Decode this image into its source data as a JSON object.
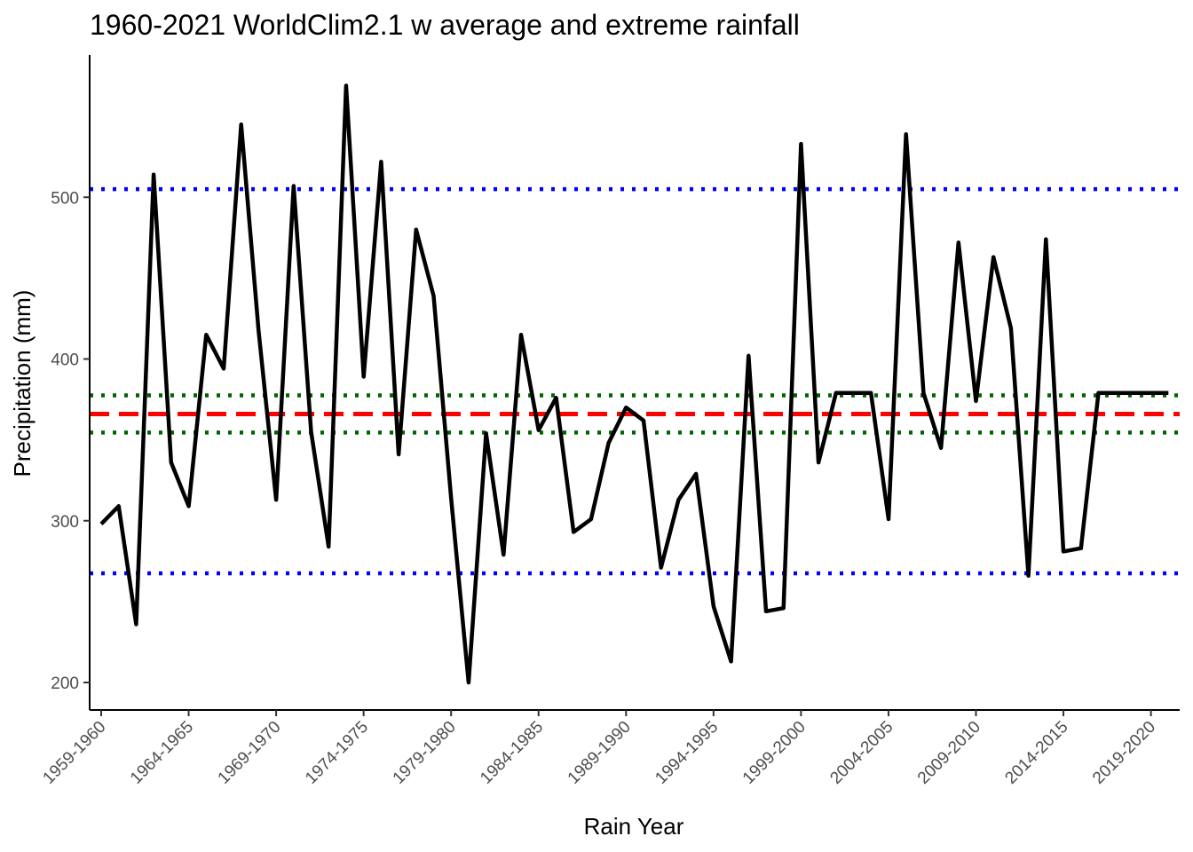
{
  "chart_data": {
    "type": "line",
    "title": "1960-2021 WorldClim2.1 w average and extreme rainfall",
    "xlabel": "Rain Year",
    "ylabel": "Precipitation (mm)",
    "grid": false,
    "legend": "none",
    "ylim": [
      180,
      590
    ],
    "y_ticks": [
      200,
      300,
      400,
      500
    ],
    "x_tick_labels": [
      "1959-1960",
      "1964-1965",
      "1969-1970",
      "1974-1975",
      "1979-1980",
      "1984-1985",
      "1989-1990",
      "1994-1995",
      "1999-2000",
      "2004-2005",
      "2009-2010",
      "2014-2015",
      "2019-2020"
    ],
    "categories": [
      "1959-1960",
      "1960-1961",
      "1961-1962",
      "1962-1963",
      "1963-1964",
      "1964-1965",
      "1965-1966",
      "1966-1967",
      "1967-1968",
      "1968-1969",
      "1969-1970",
      "1970-1971",
      "1971-1972",
      "1972-1973",
      "1973-1974",
      "1974-1975",
      "1975-1976",
      "1976-1977",
      "1977-1978",
      "1978-1979",
      "1979-1980",
      "1980-1981",
      "1981-1982",
      "1982-1983",
      "1983-1984",
      "1984-1985",
      "1985-1986",
      "1986-1987",
      "1987-1988",
      "1988-1989",
      "1989-1990",
      "1990-1991",
      "1991-1992",
      "1992-1993",
      "1993-1994",
      "1994-1995",
      "1995-1996",
      "1996-1997",
      "1997-1998",
      "1998-1999",
      "1999-2000",
      "2000-2001",
      "2001-2002",
      "2002-2003",
      "2003-2004",
      "2004-2005",
      "2005-2006",
      "2006-2007",
      "2007-2008",
      "2008-2009",
      "2009-2010",
      "2010-2011",
      "2011-2012",
      "2012-2013",
      "2013-2014",
      "2014-2015",
      "2015-2016",
      "2016-2017",
      "2017-2018",
      "2018-2019",
      "2019-2020",
      "2020-2021"
    ],
    "series": [
      {
        "color": "#000000",
        "values": [
          298,
          309,
          236,
          514,
          336,
          309,
          415,
          394,
          545,
          417,
          313,
          507,
          355,
          284,
          569,
          389,
          522,
          341,
          480,
          439,
          314,
          200,
          354,
          279,
          415,
          356,
          376,
          293,
          301,
          348,
          370,
          362,
          271,
          313,
          329,
          247,
          213,
          402,
          244,
          246,
          533,
          336,
          379,
          379,
          379,
          301,
          539,
          379,
          345,
          472,
          374,
          463,
          419,
          266,
          474,
          281,
          283,
          379,
          379,
          379,
          379,
          379
        ]
      }
    ],
    "reference_lines": [
      {
        "value": 366,
        "style": "dashed",
        "color": "#ff0000"
      },
      {
        "value": 377.5,
        "style": "dotted",
        "color": "#006400"
      },
      {
        "value": 354.5,
        "style": "dotted",
        "color": "#006400"
      },
      {
        "value": 505,
        "style": "dotted",
        "color": "#0000ff"
      },
      {
        "value": 267.5,
        "style": "dotted",
        "color": "#0000ff"
      }
    ]
  }
}
